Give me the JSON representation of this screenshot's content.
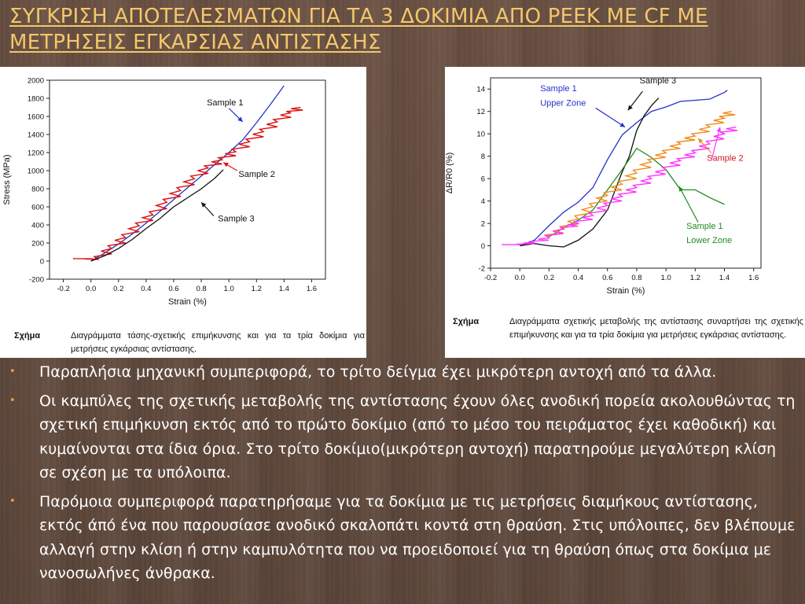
{
  "title": {
    "line1": "ΣΥΓΚΡΙΣΗ ΑΠΟΤΕΛΕΣΜΑΤΩΝ ΓΙΑ ΤΑ 3 ΔΟΚΙΜΙΑ ΑΠΟ PEEK ME CF ME",
    "line2": "ΜΕΤΡΗΣΕΙΣ ΕΓΚΑΡΣΙΑΣ ΑΝΤΙΣΤΑΣΗΣ"
  },
  "captions": {
    "left": {
      "label": "Σχήμα",
      "text": "Διαγράμματα τάσης-σχετικής επιμήκυνσης και για τα τρία δοκίμια για μετρήσεις εγκάρσιας αντίστασης."
    },
    "right": {
      "label": "Σχήμα",
      "text": "Διαγράμματα σχετικής μεταβολής της αντίστασης συναρτήσει της σχετικής επιμήκυνσης και για τα τρία δοκίμια για μετρήσεις εγκάρσιας αντίστασης."
    }
  },
  "bullets": [
    "Παραπλήσια μηχανική συμπεριφορά, το τρίτο δείγμα έχει μικρότερη αντοχή από τα άλλα.",
    "Οι καμπύλες της σχετικής μεταβολής της αντίστασης έχουν όλες ανοδική πορεία ακολουθώντας τη σχετική επιμήκυνση εκτός από το πρώτο δοκίμιο (από το μέσο του πειράματος έχει καθοδική) και κυμαίνονται στα ίδια όρια. Στο τρίτο δοκίμιο(μικρότερη αντοχή) παρατηρούμε μεγαλύτερη κλίση σε σχέση με τα υπόλοιπα.",
    "Παρόμοια συμπεριφορά παρατηρήσαμε για τα δοκίμια με τις μετρήσεις διαμήκους αντίστασης, εκτός άπό ένα που παρουσίασε ανοδικό σκαλοπάτι κοντά στη θραύση. Στις υπόλοιπες, δεν βλέπουμε αλλαγή στην κλίση ή στην καμπυλότητα που να προειδοποιεί για τη θραύση όπως στα δοκίμια με νανοσωλήνες άνθρακα."
  ],
  "colors": {
    "title": "#f4c76a",
    "bullet_marker": "#f0a04b",
    "sample1": "#2233cc",
    "sample2_stress": "#dd1111",
    "sample3": "#111111",
    "sample2_resist": "#ff33ff",
    "orange": "#f08c1e",
    "green": "#1e8c1e"
  },
  "chart_data": [
    {
      "type": "line",
      "xlabel": "Strain (%)",
      "ylabel": "Stress (MPa)",
      "xlim": [
        -0.3,
        1.7
      ],
      "ylim": [
        -200,
        2000
      ],
      "xticks": [
        -0.2,
        0.0,
        0.2,
        0.4,
        0.6,
        0.8,
        1.0,
        1.2,
        1.4,
        1.6
      ],
      "yticks": [
        -200,
        0,
        200,
        400,
        600,
        800,
        1000,
        1200,
        1400,
        1600,
        1800,
        2000
      ],
      "xtick_labels": [
        "-0.2",
        "0.0",
        "0.2",
        "0.4",
        "0.6",
        "0.8",
        "1.0",
        "1.2",
        "1.4",
        "1.6"
      ],
      "ytick_labels": [
        "-200",
        "0",
        "200",
        "400",
        "600",
        "800",
        "1000",
        "1200",
        "1400",
        "1600",
        "1800",
        "2000"
      ],
      "series": [
        {
          "name": "Sample 1",
          "color": "#2233cc",
          "x": [
            0.0,
            0.1,
            0.2,
            0.3,
            0.4,
            0.5,
            0.6,
            0.7,
            0.8,
            0.9,
            1.0,
            1.1,
            1.2,
            1.3,
            1.4
          ],
          "y": [
            0,
            90,
            190,
            300,
            420,
            550,
            680,
            810,
            940,
            1070,
            1200,
            1340,
            1530,
            1730,
            1940
          ]
        },
        {
          "name": "Sample 2",
          "color": "#dd1111",
          "zigzag": true,
          "x": [
            -0.12,
            0.05,
            0.15,
            0.25,
            0.35,
            0.45,
            0.55,
            0.65,
            0.75,
            0.85,
            0.95,
            1.05,
            1.15,
            1.25,
            1.35,
            1.45,
            1.52
          ],
          "y": [
            30,
            20,
            140,
            260,
            390,
            510,
            650,
            780,
            910,
            1030,
            1120,
            1210,
            1320,
            1430,
            1540,
            1640,
            1700
          ]
        },
        {
          "name": "Sample 3",
          "color": "#111111",
          "x": [
            0.0,
            0.1,
            0.2,
            0.3,
            0.4,
            0.5,
            0.6,
            0.7,
            0.8,
            0.9,
            0.96
          ],
          "y": [
            0,
            60,
            140,
            240,
            360,
            470,
            600,
            700,
            800,
            920,
            1010
          ]
        }
      ],
      "annotations": [
        "Sample 1",
        "Sample 2",
        "Sample 3"
      ]
    },
    {
      "type": "line",
      "xlabel": "Strain (%)",
      "ylabel": "ΔR/R0 (%)",
      "xlim": [
        -0.2,
        1.65
      ],
      "ylim": [
        -2,
        15
      ],
      "xticks": [
        -0.2,
        0.0,
        0.2,
        0.4,
        0.6,
        0.8,
        1.0,
        1.2,
        1.4,
        1.6
      ],
      "yticks": [
        -2,
        0,
        2,
        4,
        6,
        8,
        10,
        12,
        14
      ],
      "xtick_labels": [
        "-0.2",
        "0.0",
        "0.2",
        "0.4",
        "0.6",
        "0.8",
        "1.0",
        "1.2",
        "1.4",
        "1.6"
      ],
      "ytick_labels": [
        "-2",
        "0",
        "2",
        "4",
        "6",
        "8",
        "10",
        "12",
        "14"
      ],
      "series": [
        {
          "name": "Sample 1 Upper Zone",
          "color": "#2233cc",
          "x": [
            0.0,
            0.1,
            0.2,
            0.3,
            0.4,
            0.5,
            0.6,
            0.7,
            0.8,
            0.9,
            1.0,
            1.1,
            1.2,
            1.3,
            1.4,
            1.42
          ],
          "y": [
            0.0,
            0.5,
            1.8,
            3.0,
            3.9,
            5.2,
            7.7,
            9.9,
            11.0,
            12.0,
            12.4,
            12.9,
            13.0,
            13.1,
            13.7,
            13.9
          ]
        },
        {
          "name": "Sample 3",
          "color": "#111111",
          "x": [
            0.0,
            0.1,
            0.2,
            0.3,
            0.4,
            0.5,
            0.6,
            0.7,
            0.75,
            0.8,
            0.85,
            0.9,
            0.95
          ],
          "y": [
            0.0,
            0.2,
            0.0,
            -0.1,
            0.5,
            1.5,
            3.2,
            6.6,
            8.0,
            10.3,
            11.6,
            12.5,
            13.2
          ]
        },
        {
          "name": "Sample 1 Lower Zone",
          "color": "#1e8c1e",
          "x": [
            0.2,
            0.3,
            0.4,
            0.5,
            0.6,
            0.7,
            0.8,
            0.9,
            1.0,
            1.1,
            1.2,
            1.3,
            1.4
          ],
          "y": [
            0.8,
            1.6,
            2.3,
            3.2,
            5.0,
            6.8,
            8.7,
            7.9,
            6.8,
            5.0,
            5.0,
            4.3,
            3.7
          ]
        },
        {
          "name": "Sample 2",
          "color": "#f08c1e",
          "zigzag": true,
          "x": [
            0.2,
            0.3,
            0.4,
            0.5,
            0.6,
            0.7,
            0.8,
            0.9,
            1.0,
            1.1,
            1.2,
            1.3,
            1.4,
            1.45
          ],
          "y": [
            0.8,
            1.5,
            2.4,
            3.5,
            4.5,
            5.5,
            6.5,
            7.5,
            8.3,
            9.1,
            9.8,
            10.6,
            11.4,
            12.0
          ]
        },
        {
          "name": "Sample 2",
          "color": "#ff33ff",
          "zigzag": true,
          "x": [
            -0.1,
            0.0,
            0.1,
            0.2,
            0.3,
            0.4,
            0.5,
            0.6,
            0.7,
            0.8,
            0.9,
            1.0,
            1.1,
            1.2,
            1.3,
            1.4,
            1.48
          ],
          "y": [
            0.1,
            0.1,
            0.3,
            0.7,
            1.5,
            2.0,
            2.7,
            3.6,
            4.4,
            5.2,
            6.0,
            6.8,
            7.6,
            8.3,
            9.1,
            10.0,
            10.6
          ]
        }
      ],
      "annotations": [
        "Sample 1",
        "Upper Zone",
        "Sample 3",
        "Sample 2",
        "Sample 1",
        "Lower Zone"
      ]
    }
  ]
}
